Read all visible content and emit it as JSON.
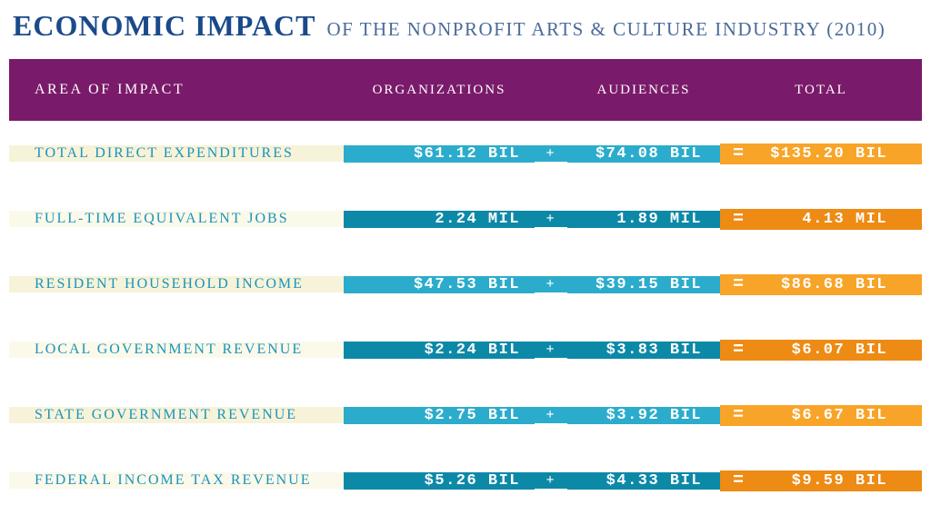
{
  "title": {
    "main": "ECONOMIC IMPACT",
    "sub": "OF THE NONPROFIT ARTS & CULTURE INDUSTRY (2010)"
  },
  "colors": {
    "title_main": "#1a4a8a",
    "title_sub": "#4a6a9a",
    "header_bg": "#7a1a6a",
    "label_bg_odd": "#f7f3d9",
    "label_bg_even": "#fbf9ea",
    "label_text": "#1a94bc",
    "data_bg_odd": "#2caccc",
    "data_bg_even": "#0d89a8",
    "total_bg_odd": "#f8a428",
    "total_bg_even": "#ed8b15",
    "white": "#ffffff"
  },
  "header": {
    "label": "AREA OF IMPACT",
    "org": "ORGANIZATIONS",
    "aud": "AUDIENCES",
    "total": "TOTAL"
  },
  "rows": [
    {
      "label": "TOTAL DIRECT EXPENDITURES",
      "org": "$61.12 BIL",
      "aud": "$74.08 BIL",
      "total": "$135.20 BIL"
    },
    {
      "label": "FULL-TIME EQUIVALENT JOBS",
      "org": "2.24 MIL",
      "aud": "1.89 MIL",
      "total": "4.13 MIL"
    },
    {
      "label": "RESIDENT HOUSEHOLD INCOME",
      "org": "$47.53 BIL",
      "aud": "$39.15 BIL",
      "total": "$86.68 BIL"
    },
    {
      "label": "LOCAL GOVERNMENT REVENUE",
      "org": "$2.24 BIL",
      "aud": "$3.83 BIL",
      "total": "$6.07 BIL"
    },
    {
      "label": "STATE GOVERNMENT REVENUE",
      "org": "$2.75 BIL",
      "aud": "$3.92 BIL",
      "total": "$6.67 BIL"
    },
    {
      "label": "FEDERAL INCOME TAX REVENUE",
      "org": "$5.26 BIL",
      "aud": "$4.33 BIL",
      "total": "$9.59 BIL"
    }
  ]
}
